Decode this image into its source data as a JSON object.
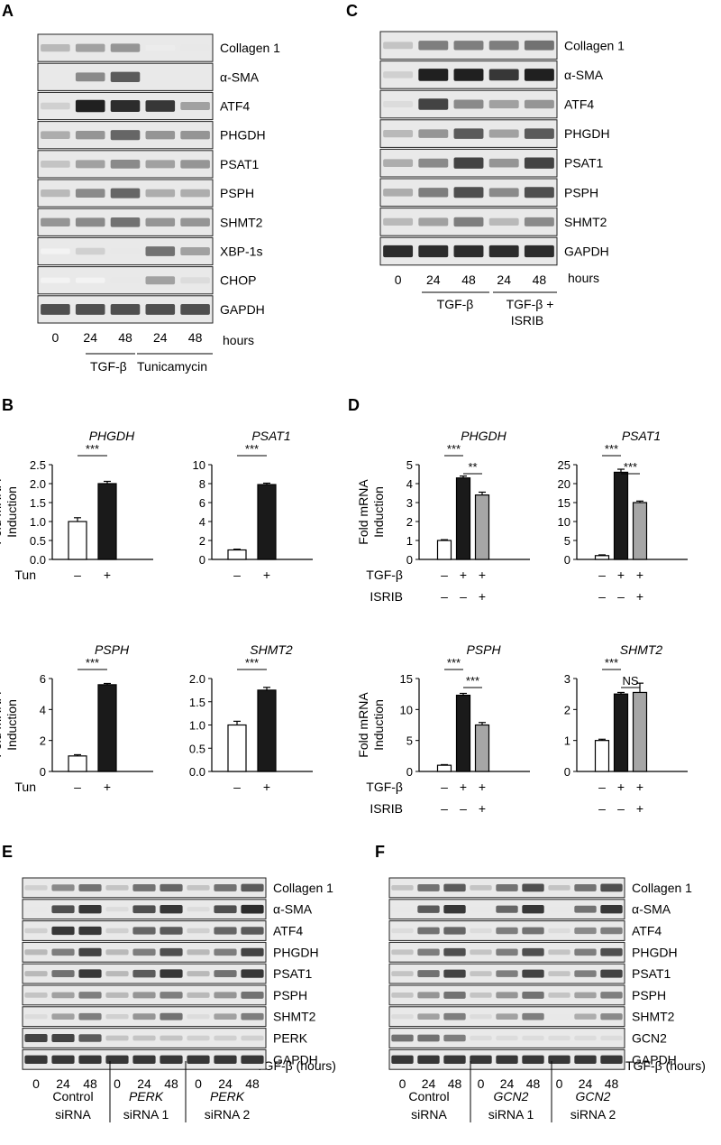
{
  "panel_letters": [
    "A",
    "B",
    "C",
    "D",
    "E",
    "F"
  ],
  "units": {
    "hours": "hours",
    "tgfb_hours": "TGF-β (hours)",
    "ylabel_line1": "Fold mRNA",
    "ylabel_line2": "Induction",
    "tun": "Tun",
    "tgfb": "TGF-β",
    "isrib": "ISRIB",
    "minus": "–",
    "plus": "+"
  },
  "blot_A": {
    "rows": [
      "Collagen 1",
      "α-SMA",
      "ATF4",
      "PHGDH",
      "PSAT1",
      "PSPH",
      "SHMT2",
      "XBP-1s",
      "CHOP",
      "GAPDH"
    ],
    "lanes": [
      "0",
      "24",
      "48",
      "24",
      "48"
    ],
    "groups": [
      "TGF-β",
      "Tunicamycin"
    ],
    "intensity": [
      [
        0.3,
        0.4,
        0.45,
        0.08,
        0.1
      ],
      [
        0.0,
        0.5,
        0.7,
        0.0,
        0.0
      ],
      [
        0.2,
        0.95,
        0.9,
        0.85,
        0.4
      ],
      [
        0.35,
        0.45,
        0.65,
        0.45,
        0.45
      ],
      [
        0.25,
        0.4,
        0.5,
        0.4,
        0.45
      ],
      [
        0.3,
        0.5,
        0.65,
        0.35,
        0.35
      ],
      [
        0.45,
        0.5,
        0.6,
        0.45,
        0.45
      ],
      [
        0.05,
        0.2,
        0.1,
        0.6,
        0.4
      ],
      [
        0.05,
        0.05,
        0.1,
        0.4,
        0.15
      ],
      [
        0.75,
        0.75,
        0.75,
        0.75,
        0.75
      ]
    ]
  },
  "blot_C": {
    "rows": [
      "Collagen 1",
      "α-SMA",
      "ATF4",
      "PHGDH",
      "PSAT1",
      "PSPH",
      "SHMT2",
      "GAPDH"
    ],
    "lanes": [
      "0",
      "24",
      "48",
      "24",
      "48"
    ],
    "groups": [
      "TGF-β",
      "TGF-β +",
      "ISRIB"
    ],
    "intensity": [
      [
        0.25,
        0.55,
        0.55,
        0.55,
        0.6
      ],
      [
        0.2,
        0.95,
        0.95,
        0.85,
        0.95
      ],
      [
        0.15,
        0.8,
        0.5,
        0.4,
        0.45
      ],
      [
        0.3,
        0.45,
        0.7,
        0.4,
        0.7
      ],
      [
        0.35,
        0.5,
        0.8,
        0.45,
        0.8
      ],
      [
        0.35,
        0.55,
        0.75,
        0.5,
        0.75
      ],
      [
        0.3,
        0.4,
        0.55,
        0.3,
        0.5
      ],
      [
        0.9,
        0.9,
        0.9,
        0.9,
        0.9
      ]
    ]
  },
  "blot_E": {
    "rows": [
      "Collagen 1",
      "α-SMA",
      "ATF4",
      "PHGDH",
      "PSAT1",
      "PSPH",
      "SHMT2",
      "PERK",
      "GAPDH"
    ],
    "lanes": [
      "0",
      "24",
      "48",
      "0",
      "24",
      "48",
      "0",
      "24",
      "48"
    ],
    "groups": [
      {
        "line1": "Control",
        "line2": "siRNA"
      },
      {
        "line1": "PERK",
        "line2": "siRNA 1"
      },
      {
        "line1": "PERK",
        "line2": "siRNA 2"
      }
    ],
    "intensity": [
      [
        0.2,
        0.5,
        0.6,
        0.25,
        0.6,
        0.65,
        0.25,
        0.6,
        0.7
      ],
      [
        0.1,
        0.75,
        0.85,
        0.15,
        0.75,
        0.85,
        0.15,
        0.75,
        0.9
      ],
      [
        0.2,
        0.85,
        0.85,
        0.2,
        0.65,
        0.7,
        0.2,
        0.65,
        0.7
      ],
      [
        0.3,
        0.55,
        0.8,
        0.3,
        0.55,
        0.75,
        0.3,
        0.55,
        0.8
      ],
      [
        0.3,
        0.6,
        0.85,
        0.3,
        0.7,
        0.85,
        0.3,
        0.6,
        0.85
      ],
      [
        0.25,
        0.4,
        0.55,
        0.3,
        0.45,
        0.55,
        0.3,
        0.45,
        0.6
      ],
      [
        0.15,
        0.4,
        0.55,
        0.2,
        0.45,
        0.6,
        0.15,
        0.4,
        0.55
      ],
      [
        0.8,
        0.8,
        0.7,
        0.25,
        0.25,
        0.25,
        0.2,
        0.2,
        0.2
      ],
      [
        0.85,
        0.85,
        0.85,
        0.85,
        0.85,
        0.85,
        0.85,
        0.85,
        0.85
      ]
    ]
  },
  "blot_F": {
    "rows": [
      "Collagen 1",
      "α-SMA",
      "ATF4",
      "PHGDH",
      "PSAT1",
      "PSPH",
      "SHMT2",
      "GCN2",
      "GAPDH"
    ],
    "lanes": [
      "0",
      "24",
      "48",
      "0",
      "24",
      "48",
      "0",
      "24",
      "48"
    ],
    "groups": [
      {
        "line1": "Control",
        "line2": "siRNA"
      },
      {
        "line1": "GCN2",
        "line2": "siRNA 1"
      },
      {
        "line1": "GCN2",
        "line2": "siRNA 2"
      }
    ],
    "intensity": [
      [
        0.25,
        0.6,
        0.7,
        0.25,
        0.6,
        0.75,
        0.25,
        0.6,
        0.75
      ],
      [
        0.1,
        0.7,
        0.85,
        0.1,
        0.65,
        0.85,
        0.1,
        0.6,
        0.85
      ],
      [
        0.15,
        0.6,
        0.65,
        0.15,
        0.55,
        0.6,
        0.15,
        0.5,
        0.55
      ],
      [
        0.25,
        0.55,
        0.75,
        0.25,
        0.55,
        0.75,
        0.25,
        0.55,
        0.75
      ],
      [
        0.25,
        0.6,
        0.8,
        0.25,
        0.55,
        0.8,
        0.25,
        0.55,
        0.8
      ],
      [
        0.25,
        0.45,
        0.6,
        0.25,
        0.45,
        0.6,
        0.25,
        0.4,
        0.55
      ],
      [
        0.15,
        0.4,
        0.55,
        0.15,
        0.4,
        0.55,
        0.1,
        0.35,
        0.5
      ],
      [
        0.6,
        0.6,
        0.55,
        0.15,
        0.15,
        0.15,
        0.15,
        0.15,
        0.15
      ],
      [
        0.85,
        0.85,
        0.85,
        0.85,
        0.85,
        0.85,
        0.85,
        0.85,
        0.85
      ]
    ]
  },
  "chart_data": [
    {
      "panel": "B",
      "type": "bar",
      "title": "PHGDH",
      "ylabel": "Fold mRNA Induction",
      "ylim": [
        0,
        2.5
      ],
      "yticks": [
        "0.0",
        "0.5",
        "1.0",
        "1.5",
        "2.0",
        "2.5"
      ],
      "values": [
        1.0,
        2.0
      ],
      "errors": [
        0.1,
        0.06
      ],
      "colors": [
        "#ffffff",
        "#1a1a1a"
      ],
      "conditions": [
        [
          "–",
          "+"
        ]
      ],
      "condition_labels": [
        "Tun"
      ],
      "sig": [
        {
          "from": 0,
          "to": 1,
          "label": "***"
        }
      ]
    },
    {
      "panel": "B",
      "type": "bar",
      "title": "PSAT1",
      "ylabel": "",
      "ylim": [
        0,
        10
      ],
      "yticks": [
        "0",
        "2",
        "4",
        "6",
        "8",
        "10"
      ],
      "values": [
        1.0,
        7.9
      ],
      "errors": [
        0.08,
        0.15
      ],
      "colors": [
        "#ffffff",
        "#1a1a1a"
      ],
      "conditions": [
        [
          "–",
          "+"
        ]
      ],
      "condition_labels": [
        ""
      ],
      "sig": [
        {
          "from": 0,
          "to": 1,
          "label": "***"
        }
      ]
    },
    {
      "panel": "B",
      "type": "bar",
      "title": "PSPH",
      "ylabel": "Fold mRNA Induction",
      "ylim": [
        0,
        6
      ],
      "yticks": [
        "0",
        "2",
        "4",
        "6"
      ],
      "values": [
        1.0,
        5.6
      ],
      "errors": [
        0.08,
        0.08
      ],
      "colors": [
        "#ffffff",
        "#1a1a1a"
      ],
      "conditions": [
        [
          "–",
          "+"
        ]
      ],
      "condition_labels": [
        "Tun"
      ],
      "sig": [
        {
          "from": 0,
          "to": 1,
          "label": "***"
        }
      ]
    },
    {
      "panel": "B",
      "type": "bar",
      "title": "SHMT2",
      "ylabel": "",
      "ylim": [
        0,
        2.0
      ],
      "yticks": [
        "0.0",
        "0.5",
        "1.0",
        "1.5",
        "2.0"
      ],
      "values": [
        1.0,
        1.75
      ],
      "errors": [
        0.08,
        0.06
      ],
      "colors": [
        "#ffffff",
        "#1a1a1a"
      ],
      "conditions": [
        [
          "–",
          "+"
        ]
      ],
      "condition_labels": [
        ""
      ],
      "sig": [
        {
          "from": 0,
          "to": 1,
          "label": "***"
        }
      ]
    },
    {
      "panel": "D",
      "type": "bar",
      "title": "PHGDH",
      "ylabel": "Fold mRNA Induction",
      "ylim": [
        0,
        5
      ],
      "yticks": [
        "0",
        "1",
        "2",
        "3",
        "4",
        "5"
      ],
      "values": [
        1.0,
        4.3,
        3.4
      ],
      "errors": [
        0.04,
        0.1,
        0.15
      ],
      "colors": [
        "#ffffff",
        "#1a1a1a",
        "#a6a6a6"
      ],
      "conditions": [
        [
          "–",
          "+",
          "+"
        ],
        [
          "–",
          "–",
          "+"
        ]
      ],
      "condition_labels": [
        "TGF-β",
        "ISRIB"
      ],
      "sig": [
        {
          "from": 0,
          "to": 1,
          "label": "***"
        },
        {
          "from": 1,
          "to": 2,
          "label": "**"
        }
      ]
    },
    {
      "panel": "D",
      "type": "bar",
      "title": "PSAT1",
      "ylabel": "",
      "ylim": [
        0,
        25
      ],
      "yticks": [
        "0",
        "5",
        "10",
        "15",
        "20",
        "25"
      ],
      "values": [
        1.0,
        23.0,
        15.0
      ],
      "errors": [
        0.2,
        0.8,
        0.4
      ],
      "colors": [
        "#ffffff",
        "#1a1a1a",
        "#a6a6a6"
      ],
      "conditions": [
        [
          "–",
          "+",
          "+"
        ],
        [
          "–",
          "–",
          "+"
        ]
      ],
      "condition_labels": [
        "",
        ""
      ],
      "sig": [
        {
          "from": 0,
          "to": 1,
          "label": "***"
        },
        {
          "from": 1,
          "to": 2,
          "label": "***"
        }
      ]
    },
    {
      "panel": "D",
      "type": "bar",
      "title": "PSPH",
      "ylabel": "Fold mRNA Induction",
      "ylim": [
        0,
        15
      ],
      "yticks": [
        "0",
        "5",
        "10",
        "15"
      ],
      "values": [
        1.0,
        12.3,
        7.5
      ],
      "errors": [
        0.1,
        0.3,
        0.4
      ],
      "colors": [
        "#ffffff",
        "#1a1a1a",
        "#a6a6a6"
      ],
      "conditions": [
        [
          "–",
          "+",
          "+"
        ],
        [
          "–",
          "–",
          "+"
        ]
      ],
      "condition_labels": [
        "TGF-β",
        "ISRIB"
      ],
      "sig": [
        {
          "from": 0,
          "to": 1,
          "label": "***"
        },
        {
          "from": 1,
          "to": 2,
          "label": "***"
        }
      ]
    },
    {
      "panel": "D",
      "type": "bar",
      "title": "SHMT2",
      "ylabel": "",
      "ylim": [
        0,
        3
      ],
      "yticks": [
        "0",
        "1",
        "2",
        "3"
      ],
      "values": [
        1.0,
        2.5,
        2.55
      ],
      "errors": [
        0.04,
        0.05,
        0.3
      ],
      "colors": [
        "#ffffff",
        "#1a1a1a",
        "#a6a6a6"
      ],
      "conditions": [
        [
          "–",
          "+",
          "+"
        ],
        [
          "–",
          "–",
          "+"
        ]
      ],
      "condition_labels": [
        "",
        ""
      ],
      "sig": [
        {
          "from": 0,
          "to": 1,
          "label": "***"
        },
        {
          "from": 1,
          "to": 2,
          "label": "NS"
        }
      ]
    }
  ]
}
